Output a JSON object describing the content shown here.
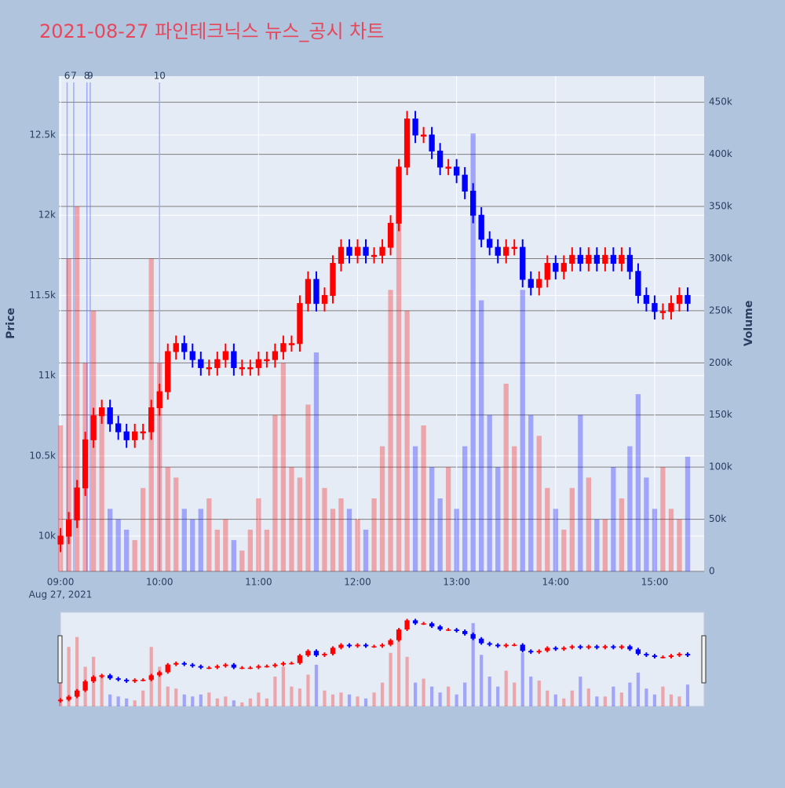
{
  "chart_data": {
    "type": "candlestick",
    "title": "2021-08-27 파인테크닉스 뉴스_공시 차트",
    "x": [
      "2021-08-27 09:00",
      "2021-08-27 09:05",
      "2021-08-27 09:10",
      "2021-08-27 09:15",
      "2021-08-27 09:20",
      "2021-08-27 09:25",
      "2021-08-27 09:30",
      "2021-08-27 09:35",
      "2021-08-27 09:40",
      "2021-08-27 09:45",
      "2021-08-27 09:50",
      "2021-08-27 09:55",
      "2021-08-27 10:00",
      "2021-08-27 10:05",
      "2021-08-27 10:10",
      "2021-08-27 10:15",
      "2021-08-27 10:20",
      "2021-08-27 10:25",
      "2021-08-27 10:30",
      "2021-08-27 10:35",
      "2021-08-27 10:40",
      "2021-08-27 10:45",
      "2021-08-27 10:50",
      "2021-08-27 10:55",
      "2021-08-27 11:00",
      "2021-08-27 11:05",
      "2021-08-27 11:10",
      "2021-08-27 11:15",
      "2021-08-27 11:20",
      "2021-08-27 11:25",
      "2021-08-27 11:30",
      "2021-08-27 11:35",
      "2021-08-27 11:40",
      "2021-08-27 11:45",
      "2021-08-27 11:50",
      "2021-08-27 11:55",
      "2021-08-27 12:00",
      "2021-08-27 12:05",
      "2021-08-27 12:10",
      "2021-08-27 12:15",
      "2021-08-27 12:20",
      "2021-08-27 12:25",
      "2021-08-27 12:30",
      "2021-08-27 12:35",
      "2021-08-27 12:40",
      "2021-08-27 12:45",
      "2021-08-27 12:50",
      "2021-08-27 12:55",
      "2021-08-27 13:00",
      "2021-08-27 13:05",
      "2021-08-27 13:10",
      "2021-08-27 13:15",
      "2021-08-27 13:20",
      "2021-08-27 13:25",
      "2021-08-27 13:30",
      "2021-08-27 13:35",
      "2021-08-27 13:40",
      "2021-08-27 13:45",
      "2021-08-27 13:50",
      "2021-08-27 13:55",
      "2021-08-27 14:00",
      "2021-08-27 14:05",
      "2021-08-27 14:10",
      "2021-08-27 14:15",
      "2021-08-27 14:20",
      "2021-08-27 14:25",
      "2021-08-27 14:30",
      "2021-08-27 14:35",
      "2021-08-27 14:40",
      "2021-08-27 14:45",
      "2021-08-27 14:50",
      "2021-08-27 14:55",
      "2021-08-27 15:00",
      "2021-08-27 15:05",
      "2021-08-27 15:10",
      "2021-08-27 15:15",
      "2021-08-27 15:20"
    ],
    "open": [
      9950,
      10000,
      10100,
      10300,
      10600,
      10750,
      10800,
      10700,
      10650,
      10600,
      10650,
      10650,
      10800,
      10900,
      11150,
      11200,
      11150,
      11100,
      11050,
      11050,
      11100,
      11150,
      11050,
      11050,
      11050,
      11100,
      11100,
      11150,
      11200,
      11200,
      11450,
      11600,
      11450,
      11500,
      11700,
      11800,
      11750,
      11800,
      11750,
      11750,
      11800,
      11950,
      12300,
      12600,
      12500,
      12500,
      12400,
      12300,
      12300,
      12250,
      12150,
      12000,
      11850,
      11800,
      11750,
      11800,
      11800,
      11600,
      11550,
      11600,
      11700,
      11650,
      11700,
      11750,
      11700,
      11750,
      11700,
      11750,
      11700,
      11750,
      11650,
      11500,
      11450,
      11400,
      11400,
      11450,
      11500
    ],
    "high": [
      10050,
      10150,
      10350,
      10650,
      10800,
      10850,
      10850,
      10750,
      10700,
      10700,
      10700,
      10850,
      10950,
      11200,
      11250,
      11250,
      11200,
      11150,
      11100,
      11150,
      11200,
      11200,
      11100,
      11100,
      11150,
      11150,
      11200,
      11250,
      11250,
      11500,
      11650,
      11650,
      11550,
      11750,
      11850,
      11850,
      11850,
      11850,
      11800,
      11850,
      12000,
      12350,
      12650,
      12650,
      12550,
      12550,
      12450,
      12350,
      12350,
      12300,
      12200,
      12050,
      11900,
      11850,
      11850,
      11850,
      11850,
      11650,
      11650,
      11750,
      11750,
      11750,
      11800,
      11800,
      11800,
      11800,
      11800,
      11800,
      11800,
      11800,
      11700,
      11550,
      11500,
      11450,
      11500,
      11550,
      11550
    ],
    "low": [
      9900,
      9950,
      10050,
      10250,
      10550,
      10700,
      10650,
      10600,
      10550,
      10550,
      10600,
      10600,
      10750,
      10850,
      11100,
      11100,
      11050,
      11000,
      11000,
      11000,
      11050,
      11000,
      11000,
      11000,
      11000,
      11050,
      11050,
      11100,
      11150,
      11150,
      11400,
      11400,
      11400,
      11450,
      11650,
      11700,
      11700,
      11700,
      11700,
      11700,
      11750,
      11900,
      12250,
      12450,
      12450,
      12350,
      12250,
      12250,
      12200,
      12100,
      11950,
      11800,
      11750,
      11700,
      11700,
      11750,
      11550,
      11500,
      11500,
      11550,
      11600,
      11600,
      11650,
      11650,
      11650,
      11650,
      11650,
      11650,
      11650,
      11600,
      11450,
      11400,
      11350,
      11350,
      11350,
      11400,
      11400
    ],
    "close": [
      10000,
      10100,
      10300,
      10600,
      10750,
      10800,
      10700,
      10650,
      10600,
      10650,
      10650,
      10800,
      10900,
      11150,
      11200,
      11150,
      11100,
      11050,
      11050,
      11100,
      11150,
      11050,
      11050,
      11050,
      11100,
      11100,
      11150,
      11200,
      11200,
      11450,
      11600,
      11450,
      11500,
      11700,
      11800,
      11750,
      11800,
      11750,
      11750,
      11800,
      11950,
      12300,
      12600,
      12500,
      12500,
      12400,
      12300,
      12300,
      12250,
      12150,
      12000,
      11850,
      11800,
      11750,
      11800,
      11800,
      11600,
      11550,
      11600,
      11700,
      11650,
      11700,
      11750,
      11700,
      11750,
      11700,
      11750,
      11700,
      11750,
      11650,
      11500,
      11450,
      11400,
      11400,
      11450,
      11500,
      11450
    ],
    "volume": [
      140000,
      300000,
      350000,
      200000,
      250000,
      150000,
      60000,
      50000,
      40000,
      30000,
      80000,
      300000,
      200000,
      100000,
      90000,
      60000,
      50000,
      60000,
      70000,
      40000,
      50000,
      30000,
      20000,
      40000,
      70000,
      40000,
      150000,
      200000,
      100000,
      90000,
      160000,
      210000,
      80000,
      60000,
      70000,
      60000,
      50000,
      40000,
      70000,
      120000,
      270000,
      360000,
      250000,
      120000,
      140000,
      100000,
      70000,
      100000,
      60000,
      120000,
      420000,
      260000,
      150000,
      100000,
      180000,
      120000,
      270000,
      150000,
      130000,
      80000,
      60000,
      40000,
      80000,
      150000,
      90000,
      50000,
      50000,
      100000,
      70000,
      120000,
      170000,
      90000,
      60000,
      100000,
      60000,
      50000,
      110000
    ],
    "colors": {
      "increasing": "#ff0000",
      "decreasing": "#0000ff"
    },
    "xlim": [
      "2021-08-27 08:59",
      "2021-08-27 15:30"
    ],
    "xticks": [
      {
        "value": "2021-08-27 09:00",
        "label": "09:00"
      },
      {
        "value": "2021-08-27 10:00",
        "label": "10:00"
      },
      {
        "value": "2021-08-27 11:00",
        "label": "11:00"
      },
      {
        "value": "2021-08-27 12:00",
        "label": "12:00"
      },
      {
        "value": "2021-08-27 13:00",
        "label": "13:00"
      },
      {
        "value": "2021-08-27 14:00",
        "label": "14:00"
      },
      {
        "value": "2021-08-27 15:00",
        "label": "15:00"
      }
    ],
    "x_date_label": "Aug 27, 2021",
    "ylim": [
      9780,
      12867
    ],
    "yticks": [
      {
        "value": 10000,
        "label": "10k"
      },
      {
        "value": 10500,
        "label": "10.5k"
      },
      {
        "value": 11000,
        "label": "11k"
      },
      {
        "value": 11500,
        "label": "11.5k"
      },
      {
        "value": 12000,
        "label": "12k"
      },
      {
        "value": 12500,
        "label": "12.5k"
      }
    ],
    "y_title": "Price",
    "y2lim": [
      0,
      475000
    ],
    "y2ticks": [
      0,
      {
        "value": 50000,
        "label": "50k"
      },
      {
        "value": 100000,
        "label": "100k"
      },
      {
        "value": 150000,
        "label": "150k"
      },
      {
        "value": 200000,
        "label": "200k"
      },
      {
        "value": 250000,
        "label": "250k"
      },
      {
        "value": 300000,
        "label": "300k"
      },
      {
        "value": 350000,
        "label": "350k"
      },
      {
        "value": 400000,
        "label": "400k"
      },
      {
        "value": 450000,
        "label": "450k"
      }
    ],
    "y2_title": "Volume",
    "annotations": [
      {
        "x": "2021-08-27 09:04",
        "text": "6"
      },
      {
        "x": "2021-08-27 09:08",
        "text": "7"
      },
      {
        "x": "2021-08-27 09:16",
        "text": "8"
      },
      {
        "x": "2021-08-27 09:18",
        "text": "9"
      },
      {
        "x": "2021-08-27 10:00",
        "text": "10"
      }
    ],
    "rangeslider": true
  }
}
